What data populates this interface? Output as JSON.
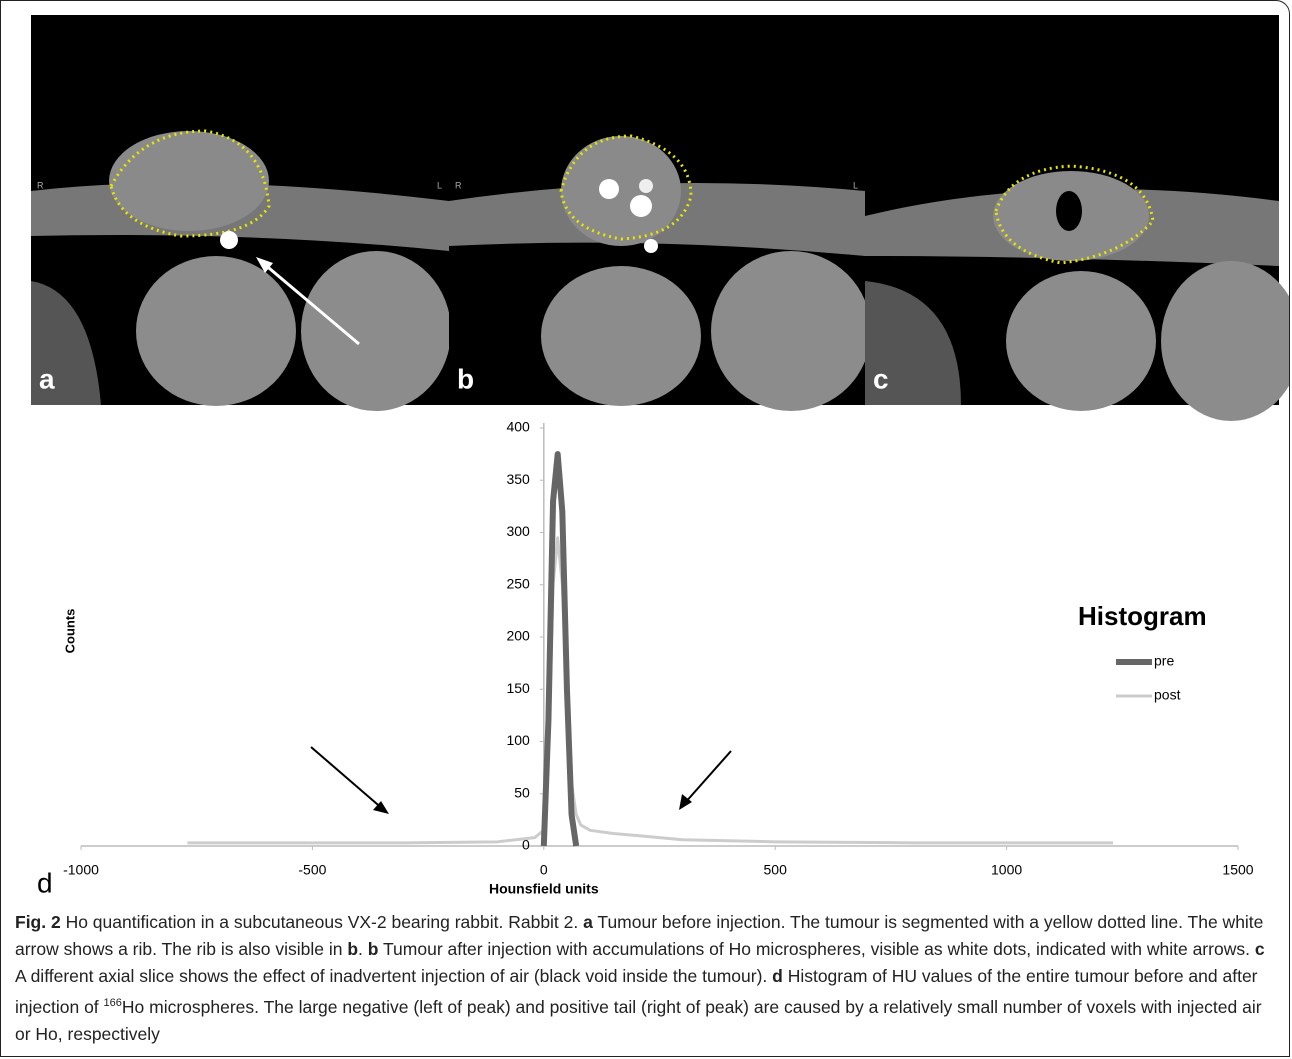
{
  "panels": [
    {
      "label": "a",
      "side_left": "R",
      "side_right": "L"
    },
    {
      "label": "b",
      "side_left": "R",
      "side_right": "L"
    },
    {
      "label": "c"
    }
  ],
  "chart_data": {
    "type": "line",
    "panel_label": "d",
    "xlabel": "Hounsfield units",
    "ylabel": "Counts",
    "legend_title": "Histogram",
    "legend": "right",
    "x": [
      -770,
      -500,
      -300,
      -100,
      -20,
      0,
      10,
      20,
      30,
      40,
      50,
      60,
      70,
      80,
      100,
      150,
      200,
      300,
      500,
      800,
      1000,
      1230
    ],
    "series": [
      {
        "name": "pre",
        "color": "#666666",
        "values": [
          null,
          null,
          null,
          null,
          null,
          0,
          120,
          330,
          375,
          320,
          150,
          30,
          0,
          null,
          null,
          null,
          null,
          null,
          null,
          null,
          null,
          null
        ]
      },
      {
        "name": "post",
        "color": "#cccccc",
        "values": [
          3,
          3,
          3,
          4,
          8,
          15,
          90,
          250,
          295,
          250,
          150,
          60,
          30,
          20,
          15,
          12,
          10,
          6,
          4,
          3,
          3,
          3
        ]
      }
    ],
    "xlim": [
      -1000,
      1500
    ],
    "xticks": [
      -1000,
      -500,
      0,
      500,
      1000,
      1500
    ],
    "ylim": [
      0,
      400
    ],
    "yticks": [
      0,
      50,
      100,
      150,
      200,
      250,
      300,
      350,
      400
    ]
  },
  "caption": [
    {
      "text": "Fig. 2",
      "style": "bold"
    },
    {
      "text": " Ho quantification in a subcutaneous VX-2 bearing rabbit. Rabbit 2. "
    },
    {
      "text": "a",
      "style": "bold"
    },
    {
      "text": " Tumour before injection. The tumour is segmented with a yellow dotted line. The white arrow shows a rib. The rib is also visible in "
    },
    {
      "text": "b",
      "style": "bold"
    },
    {
      "text": ". "
    },
    {
      "text": "b",
      "style": "bold"
    },
    {
      "text": " Tumour after injection with accumulations of Ho microspheres, visible as white dots, indicated with white arrows. "
    },
    {
      "text": "c",
      "style": "bold"
    },
    {
      "text": " A different axial slice shows the effect of inadvertent injection of air (black void inside the tumour). "
    },
    {
      "text": "d",
      "style": "bold"
    },
    {
      "text": " Histogram of HU values of the entire tumour before and after injection of "
    },
    {
      "text": "166",
      "style": "sup"
    },
    {
      "text": "Ho microspheres. The large negative (left of peak) and positive tail (right of peak) are caused by a relatively small number of voxels with injected air or Ho, respectively"
    }
  ]
}
